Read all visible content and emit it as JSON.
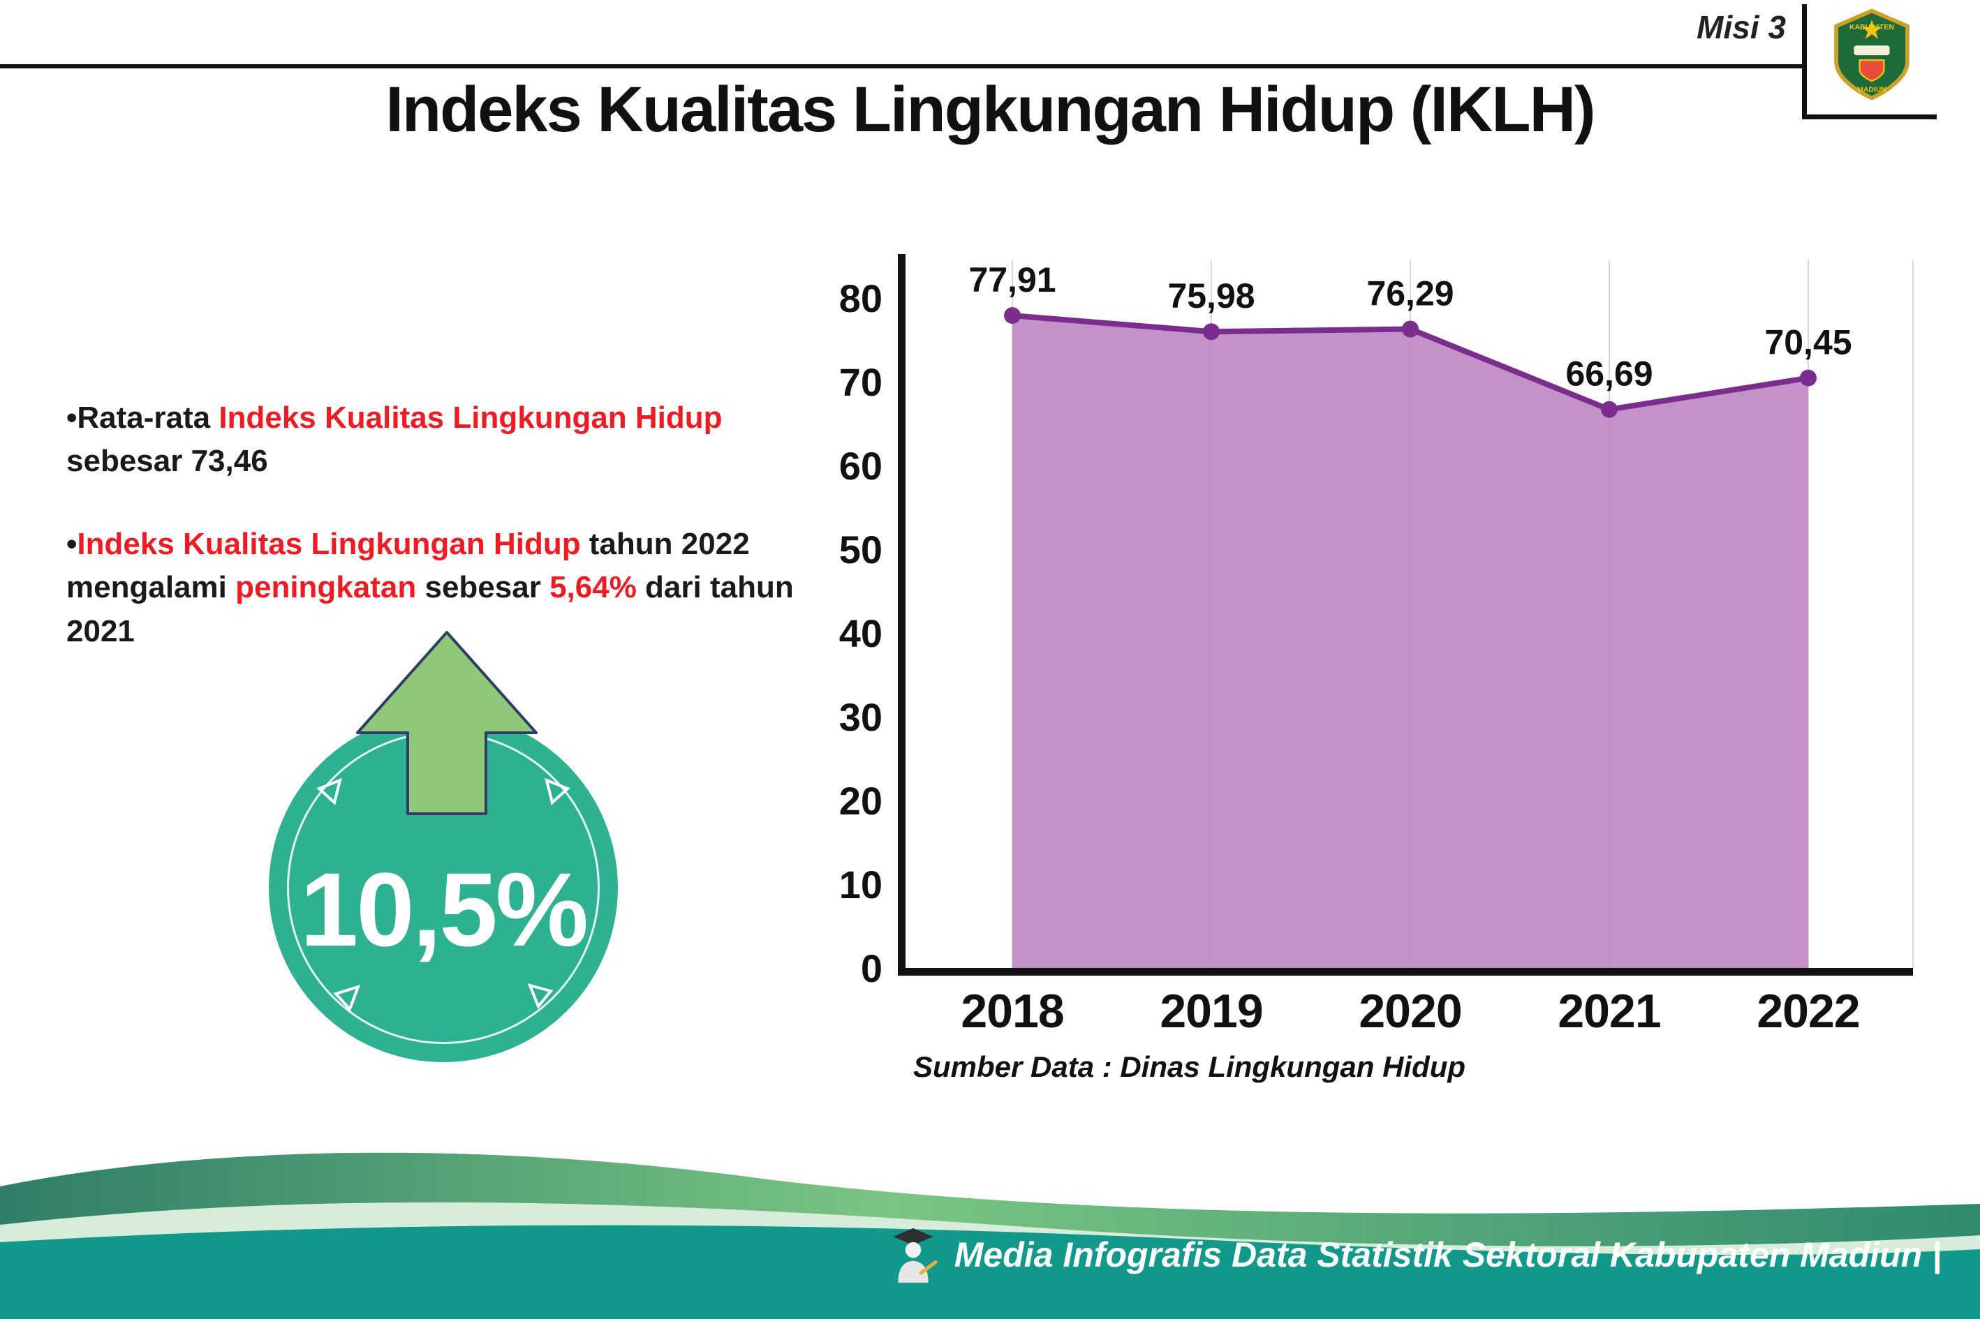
{
  "header": {
    "misi": "Misi 3",
    "title": "Indeks Kualitas Lingkungan Hidup (IKLH)",
    "logo_name": "kabupaten-madiun-logo",
    "logo_text_top": "KABUPATEN",
    "logo_text_bottom": "MADIUN"
  },
  "bullets": [
    {
      "marker": "•",
      "parts": [
        {
          "text": "Rata-rata ",
          "color": "black"
        },
        {
          "text": "Indeks Kualitas Lingkungan Hidup",
          "color": "red"
        },
        {
          "text": " sebesar 73,46",
          "color": "black"
        }
      ]
    },
    {
      "marker": "•",
      "parts": [
        {
          "text": "Indeks Kualitas Lingkungan Hidup",
          "color": "red"
        },
        {
          "text": " tahun 2022 mengalami ",
          "color": "black"
        },
        {
          "text": "peningkatan",
          "color": "red"
        },
        {
          "text": " sebesar ",
          "color": "black"
        },
        {
          "text": "5,64%",
          "color": "red"
        },
        {
          "text": " dari tahun 2021",
          "color": "black"
        }
      ]
    }
  ],
  "badge": {
    "value": "10,5%",
    "circle_color": "#2eb191",
    "arrow_color": "#8fc878"
  },
  "chart_data": {
    "type": "area",
    "categories": [
      "2018",
      "2019",
      "2020",
      "2021",
      "2022"
    ],
    "values": [
      77.91,
      75.98,
      76.29,
      66.69,
      70.45
    ],
    "value_labels": [
      "77,91",
      "75,98",
      "76,29",
      "66,69",
      "70,45"
    ],
    "title": "",
    "xlabel": "",
    "ylabel": "",
    "ylim": [
      0,
      80
    ],
    "yticks": [
      0,
      10,
      20,
      30,
      40,
      50,
      60,
      70,
      80
    ],
    "grid": true,
    "legend": "none",
    "line_color": "#7b2d8e",
    "fill_color": "#c18cc5"
  },
  "source": "Sumber Data : Dinas Lingkungan Hidup",
  "footer": {
    "text": "Media Infografis Data Statistik Sektoral Kabupaten Madiun |"
  }
}
